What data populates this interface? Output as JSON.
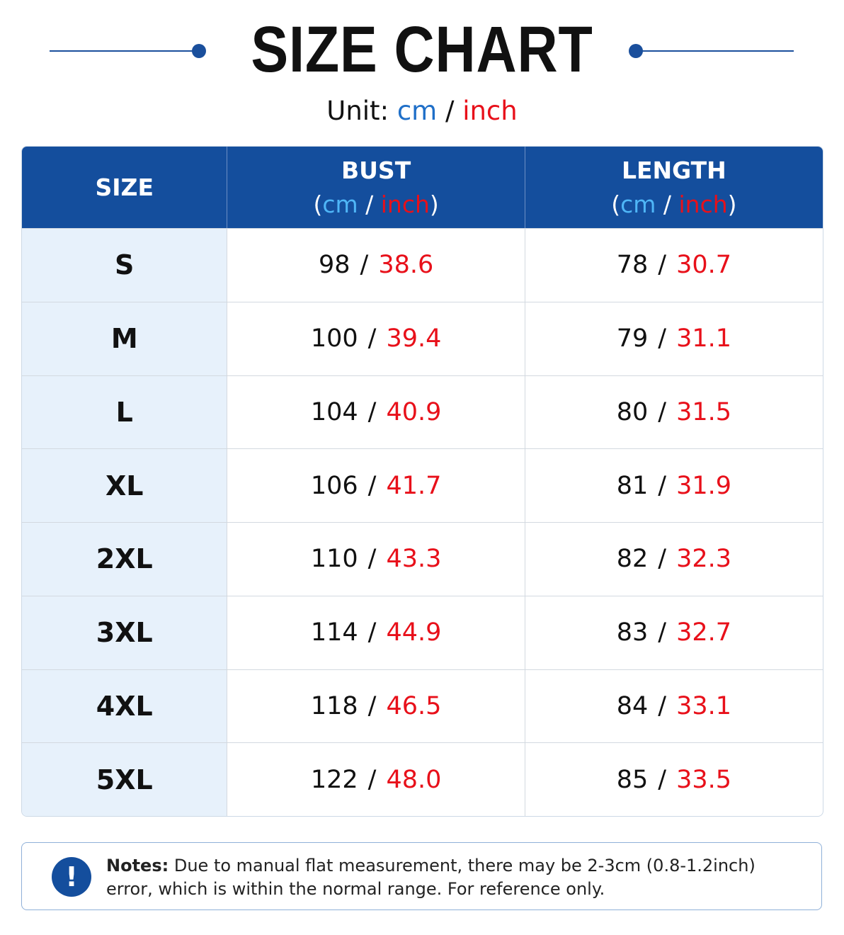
{
  "header": {
    "title": "SIZE CHART",
    "unit_label": "Unit:",
    "unit_cm": "cm",
    "unit_sep": "/",
    "unit_inch": "inch"
  },
  "table": {
    "columns": [
      {
        "label": "SIZE"
      },
      {
        "label": "BUST",
        "open": "(",
        "cm": "cm",
        "sep": "/",
        "inch": "inch",
        "close": ")"
      },
      {
        "label": "LENGTH",
        "open": "(",
        "cm": "cm",
        "sep": "/",
        "inch": "inch",
        "close": ")"
      }
    ],
    "separator": "/",
    "rows": [
      [
        "S",
        "98",
        "38.6",
        "78",
        "30.7"
      ],
      [
        "M",
        "100",
        "39.4",
        "79",
        "31.1"
      ],
      [
        "L",
        "104",
        "40.9",
        "80",
        "31.5"
      ],
      [
        "XL",
        "106",
        "41.7",
        "81",
        "31.9"
      ],
      [
        "2XL",
        "110",
        "43.3",
        "82",
        "32.3"
      ],
      [
        "3XL",
        "114",
        "44.9",
        "83",
        "32.7"
      ],
      [
        "4XL",
        "118",
        "46.5",
        "84",
        "33.1"
      ],
      [
        "5XL",
        "122",
        "48.0",
        "85",
        "33.5"
      ]
    ]
  },
  "notes": {
    "label": "Notes:",
    "text": "Due to manual flat measurement, there may be 2-3cm (0.8-1.2inch) error, which is within the normal range. For reference only."
  }
}
